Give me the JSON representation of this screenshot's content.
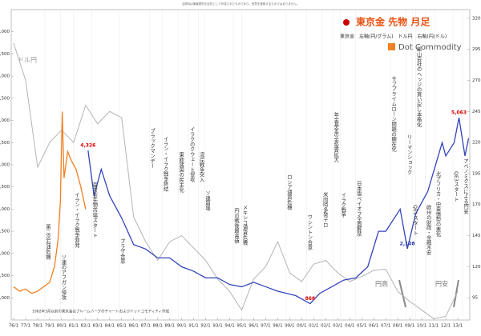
{
  "chart_data": {
    "type": "line",
    "title": "東京金 先物 月足",
    "legend_text": "東京金　左軸(円/グラム)　ドル円　右軸(円/ドル)",
    "brand": "Dot Commodity",
    "disclaimer": "当資料は情報提供を目的として作成されたものであり、売買を推奨するものではありません。",
    "source_note": "1982年3月以前の東京金はブルームバーグのチャートおよびドットコモディティ作成",
    "left_series_label": "ドル円",
    "yen_strong": "円高",
    "yen_weak": "円安",
    "annotations": [
      "第二次石油危機",
      "ソ連のアフガン侵攻",
      "イラン・イラク戦争勃発",
      "東京金先物市場スタート",
      "プラザ合意",
      "ブラックマンデー",
      "イラン・イラク戦争終結",
      "東欧諸国の民主化",
      "イラクのクウェート侵攻",
      "湾岸戦争突入",
      "ソ連崩壊",
      "円の戦後最高値",
      "メキシコ通貨危機",
      "ロシア通貨危機",
      "ワシントン合意",
      "米同時多発テロ",
      "年金基金の金投資拡大",
      "イラク戦争",
      "日本版ペイオフ全面解禁",
      "サブプライムローン問題の顕在化",
      "リーマンショック",
      "鉱山会社のヘッジの買い戻し本格化",
      "QE1スタート",
      "欧州の財政・金融不安",
      "北アフリカ・中東情勢の悪化",
      "QE3スタート",
      "アベノミクスによる円安"
    ],
    "xlim": [
      1975.8,
      2014.0
    ],
    "xticks": [
      {
        "value": 1976,
        "label": "76/1"
      },
      {
        "value": 1977,
        "label": "77/1"
      },
      {
        "value": 1978,
        "label": "78/1"
      },
      {
        "value": 1979,
        "label": "79/1"
      },
      {
        "value": 1980,
        "label": "80/1"
      },
      {
        "value": 1981,
        "label": "81/1"
      },
      {
        "value": 1982,
        "label": "82/1"
      },
      {
        "value": 1983,
        "label": "83/1"
      },
      {
        "value": 1984,
        "label": "84/1"
      },
      {
        "value": 1985,
        "label": "85/1"
      },
      {
        "value": 1986,
        "label": "86/1"
      },
      {
        "value": 1987,
        "label": "87/1"
      },
      {
        "value": 1988,
        "label": "88/1"
      },
      {
        "value": 1989,
        "label": "89/1"
      },
      {
        "value": 1990,
        "label": "90/1"
      },
      {
        "value": 1991,
        "label": "91/1"
      },
      {
        "value": 1992,
        "label": "92/1"
      },
      {
        "value": 1993,
        "label": "93/1"
      },
      {
        "value": 1994,
        "label": "94/1"
      },
      {
        "value": 1995,
        "label": "95/1"
      },
      {
        "value": 1996,
        "label": "96/1"
      },
      {
        "value": 1997,
        "label": "97/1"
      },
      {
        "value": 1998,
        "label": "98/1"
      },
      {
        "value": 1999,
        "label": "99/1"
      },
      {
        "value": 2000,
        "label": "00/1"
      },
      {
        "value": 2001,
        "label": "01/1"
      },
      {
        "value": 2002,
        "label": "02/1"
      },
      {
        "value": 2003,
        "label": "03/1"
      },
      {
        "value": 2004,
        "label": "04/1"
      },
      {
        "value": 2005,
        "label": "05/1"
      },
      {
        "value": 2006,
        "label": "06/1"
      },
      {
        "value": 2007,
        "label": "07/1"
      },
      {
        "value": 2008,
        "label": "08/1"
      },
      {
        "value": 2009,
        "label": "09/1"
      },
      {
        "value": 2010,
        "label": "10/1"
      },
      {
        "value": 2011,
        "label": "11/1"
      },
      {
        "value": 2012,
        "label": "12/1"
      },
      {
        "value": 2013,
        "label": "13/1"
      }
    ],
    "ylim": [
      500,
      7500
    ],
    "yticks": [
      {
        "value": 1000,
        "label": "1,000"
      },
      {
        "value": 1500,
        "label": "1,500"
      },
      {
        "value": 2000,
        "label": "2,000"
      },
      {
        "value": 2500,
        "label": "2,500"
      },
      {
        "value": 3000,
        "label": "3,000"
      },
      {
        "value": 3500,
        "label": "3,500"
      },
      {
        "value": 4000,
        "label": "4,000"
      },
      {
        "value": 4500,
        "label": "4,500"
      },
      {
        "value": 5000,
        "label": "5,000"
      },
      {
        "value": 5500,
        "label": "5,500"
      },
      {
        "value": 6000,
        "label": "6,000"
      },
      {
        "value": 6500,
        "label": "6,500"
      },
      {
        "value": 7000,
        "label": "7,000"
      }
    ],
    "y2lim": [
      77,
      327
    ],
    "y2ticks": [
      95,
      120,
      145,
      170,
      195,
      220,
      245,
      270,
      295,
      320
    ],
    "series": [
      {
        "name": "東京金",
        "color": "#3344bb",
        "x": [
          1982.2,
          1982.7,
          1983.3,
          1984,
          1985,
          1986,
          1987,
          1988,
          1989,
          1990,
          1991,
          1992,
          1993,
          1994,
          1995,
          1996,
          1997,
          1998,
          1999.5,
          2000.7,
          2001.5,
          2002.5,
          2003.5,
          2004.5,
          2005.5,
          2006.4,
          2007,
          2008.2,
          2008.8,
          2009.5,
          2010.5,
          2011.7,
          2012,
          2012.7,
          2013.1,
          2013.6,
          2013.9
        ],
        "values": [
          4326,
          3300,
          3900,
          3300,
          2800,
          2200,
          2100,
          1900,
          1900,
          1700,
          1600,
          1450,
          1450,
          1300,
          1250,
          1350,
          1250,
          1150,
          1050,
          868,
          1100,
          1250,
          1400,
          1450,
          1700,
          2500,
          2500,
          3000,
          2108,
          2900,
          3400,
          4500,
          4200,
          4500,
          5063,
          4200,
          4600
        ],
        "value_labels": [
          "4,326",
          null,
          null,
          null,
          null,
          null,
          null,
          null,
          null,
          null,
          null,
          null,
          null,
          null,
          null,
          null,
          null,
          null,
          null,
          "868",
          null,
          null,
          null,
          null,
          null,
          null,
          null,
          null,
          "2,108",
          null,
          null,
          null,
          null,
          null,
          "5,063",
          null,
          null
        ]
      },
      {
        "color": "#f08020",
        "x": [
          1976,
          1976.5,
          1977,
          1977.5,
          1978,
          1978.5,
          1979,
          1979.4,
          1979.7,
          1979.9,
          1980.05,
          1980.2,
          1980.5,
          1980.8,
          1981.2,
          1981.6,
          1982.0
        ],
        "values": [
          1250,
          1150,
          1200,
          1100,
          1150,
          1250,
          1350,
          1700,
          2300,
          3200,
          5200,
          3700,
          4300,
          4100,
          3900,
          3500,
          3000
        ]
      },
      {
        "name": "ドル円",
        "color": "#b4b4b4",
        "axis": "y2",
        "x": [
          1976,
          1977,
          1978,
          1979,
          1980,
          1981,
          1982,
          1983,
          1984,
          1985,
          1986,
          1987,
          1988,
          1989,
          1990,
          1991,
          1992,
          1993,
          1994,
          1995,
          1996,
          1997,
          1998,
          1999,
          2000,
          2001,
          2002,
          2003,
          2004,
          2005,
          2006,
          2007,
          2008,
          2009,
          2010,
          2011,
          2012,
          2013
        ],
        "values": [
          300,
          270,
          200,
          220,
          230,
          220,
          250,
          235,
          245,
          240,
          160,
          140,
          125,
          140,
          145,
          135,
          125,
          110,
          100,
          85,
          110,
          120,
          140,
          115,
          108,
          122,
          125,
          115,
          108,
          112,
          117,
          118,
          100,
          92,
          85,
          78,
          80,
          100
        ]
      }
    ]
  }
}
